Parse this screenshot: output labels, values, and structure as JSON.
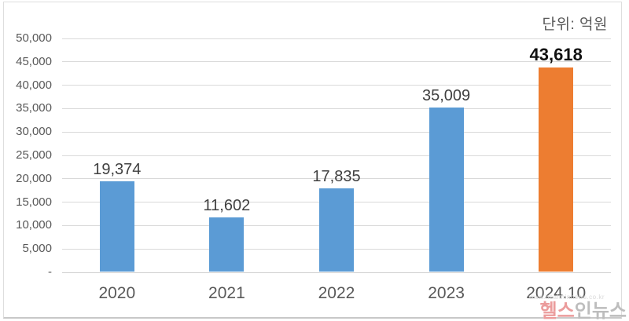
{
  "chart_data": {
    "type": "bar",
    "title": "",
    "unit_label": "단위: 억원",
    "categories": [
      "2020",
      "2021",
      "2022",
      "2023",
      "2024.10"
    ],
    "values": [
      19374,
      11602,
      17835,
      35009,
      43618
    ],
    "value_labels": [
      "19,374",
      "11,602",
      "17,835",
      "35,009",
      "43,618"
    ],
    "ylim": [
      0,
      50000
    ],
    "ytick_interval": 5000,
    "ytick_labels": [
      "50,000",
      "45,000",
      "40,000",
      "35,000",
      "30,000",
      "25,000",
      "20,000",
      "15,000",
      "10,000",
      "5,000",
      "-"
    ],
    "grid": true,
    "legend": "none",
    "bar_color": "#5B9BD5",
    "highlight_color": "#ED7D31",
    "highlight_index": 4
  },
  "watermark": {
    "brand_red": "헬스",
    "brand_gray": "인뉴스",
    "url": "www.healthinnews.co.kr"
  },
  "colors": {
    "axis_text": "#595959",
    "data_label": "#404040",
    "highlight_label": "#111111",
    "gridline": "#d9d9d9",
    "frame_border": "#dedede"
  }
}
